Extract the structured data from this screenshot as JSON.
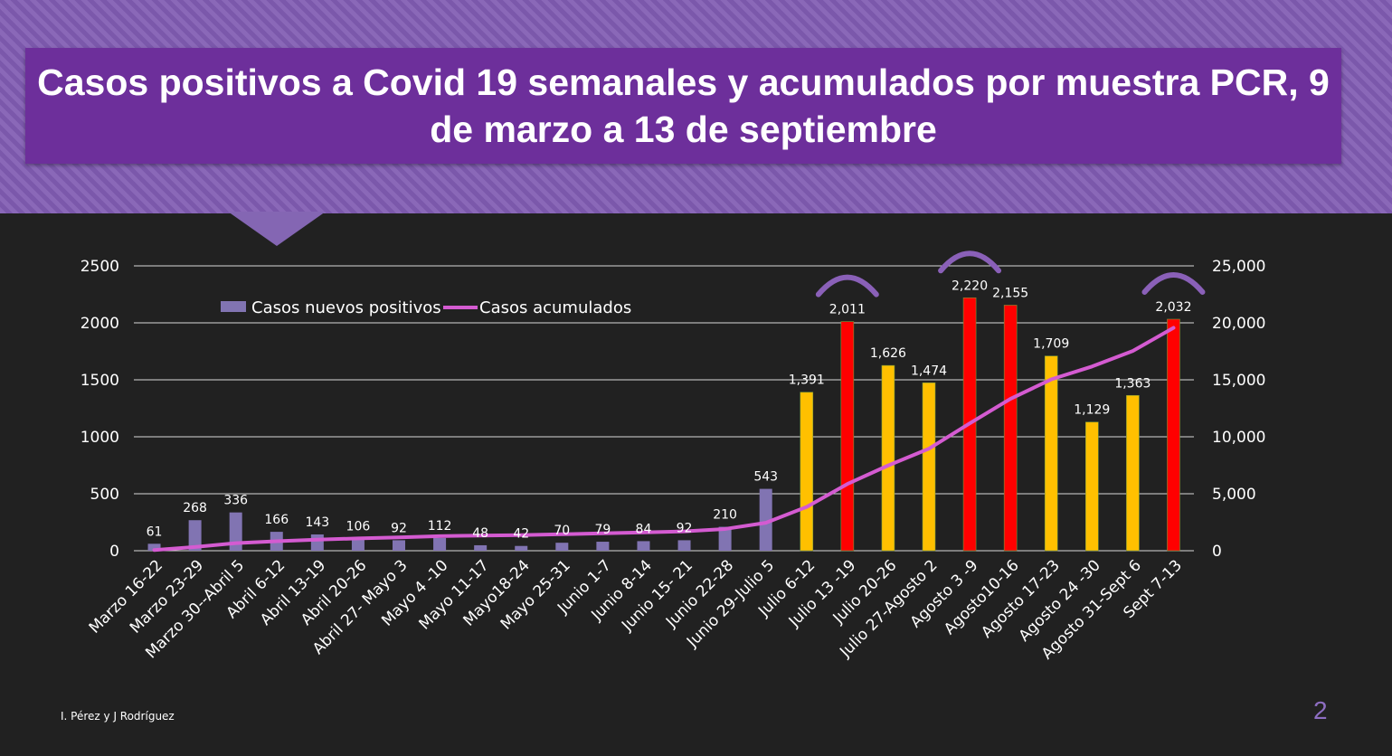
{
  "slide": {
    "title": "Casos positivos a Covid 19 semanales y acumulados por muestra PCR, 9 de marzo a 13 de septiembre",
    "footer": "I. Pérez y J Rodríguez",
    "page_number": "2"
  },
  "colors": {
    "background": "#212121",
    "header_purple": "#6d2f9b",
    "bar_purple": "#8174b2",
    "bar_yellow": "#ffc000",
    "bar_red": "#ff0000",
    "line_magenta": "#d45bd1",
    "arc_purple": "#8a60b8"
  },
  "chart_data": {
    "type": "bar",
    "categories": [
      "Marzo 16-22",
      "Marzo 23-29",
      "Marzo 30--Abril 5",
      "Abril 6-12",
      "Abril 13-19",
      "Abril 20-26",
      "Abril 27- Mayo 3",
      "Mayo 4 -10",
      "Mayo 11-17",
      "Mayo18-24",
      "Mayo 25-31",
      "Junio  1-7",
      "Junio 8-14",
      "Junio 15- 21",
      "Junio 22-28",
      "Junio  29-Julio 5",
      "Julio 6-12",
      "Julio 13 -19",
      "Julio 20-26",
      "Julio 27-Agosto 2",
      "Agosto 3 -9",
      "Agosto10-16",
      "Agosto 17-23",
      "Agosto 24 -30",
      "Agosto 31-Sept 6",
      "Sept 7-13"
    ],
    "series": [
      {
        "name": "Casos nuevos positivos",
        "type": "bar",
        "axis": "left",
        "values": [
          61,
          268,
          336,
          166,
          143,
          106,
          92,
          112,
          48,
          42,
          70,
          79,
          84,
          92,
          210,
          543,
          1391,
          2011,
          1626,
          1474,
          2220,
          2155,
          1709,
          1129,
          1363,
          2032
        ],
        "labels": [
          "61",
          "268",
          "336",
          "166",
          "143",
          "106",
          "92",
          "112",
          "48",
          "42",
          "70",
          "79",
          "84",
          "92",
          "210",
          "543",
          "1,391",
          "2,011",
          "1,626",
          "1,474",
          "2,220",
          "2,155",
          "1,709",
          "1,129",
          "1,363",
          "2,032"
        ],
        "bar_colors": [
          "purple",
          "purple",
          "purple",
          "purple",
          "purple",
          "purple",
          "purple",
          "purple",
          "purple",
          "purple",
          "purple",
          "purple",
          "purple",
          "purple",
          "purple",
          "purple",
          "yellow",
          "red",
          "yellow",
          "yellow",
          "red",
          "red",
          "yellow",
          "yellow",
          "yellow",
          "red"
        ]
      },
      {
        "name": "Casos acumulados",
        "type": "line",
        "axis": "right",
        "values": [
          61,
          329,
          665,
          831,
          974,
          1080,
          1172,
          1284,
          1332,
          1374,
          1444,
          1523,
          1607,
          1699,
          1909,
          2452,
          3843,
          5854,
          7480,
          8954,
          11174,
          13329,
          15038,
          16167,
          17530,
          19562
        ]
      }
    ],
    "y_left": {
      "min": 0,
      "max": 2500,
      "ticks": [
        "0",
        "500",
        "1000",
        "1500",
        "2000",
        "2500"
      ]
    },
    "y_right": {
      "min": 0,
      "max": 25000,
      "ticks": [
        "0",
        "5,000",
        "10,000",
        "15,000",
        "20,000",
        "25,000"
      ]
    },
    "grid": true,
    "legend_position": "top-left",
    "highlight_arcs_over": [
      "Julio 13 -19",
      "Agosto 3 -9",
      "Sept 7-13"
    ]
  }
}
